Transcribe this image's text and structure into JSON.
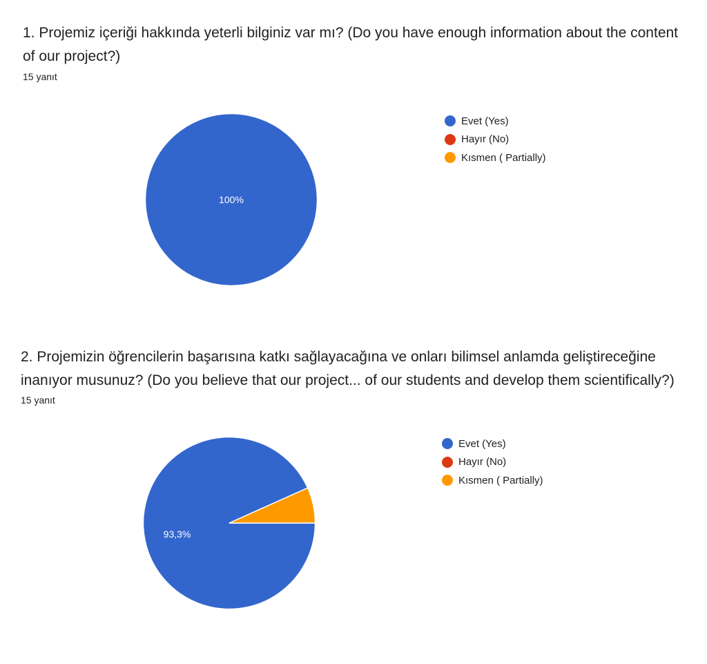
{
  "questions": [
    {
      "title": "1. Projemiz içeriği hakkında yeterli bilginiz var mı? (Do you have enough information about the content of our project?)",
      "response_count": "15 yanıt"
    },
    {
      "title": "2. Projemizin öğrencilerin başarısına katkı sağlayacağına ve onları bilimsel anlamda geliştireceğine inanıyor musunuz? (Do you believe that our project... of our students and develop them scientifically?)",
      "response_count": "15 yanıt"
    }
  ],
  "chart_data": [
    {
      "type": "pie",
      "title": "1. Projemiz içeriği hakkında yeterli bilginiz var mı? (Do you have enough information about the content of our project?)",
      "legend_placement": "right",
      "slices": [
        {
          "label": "Evet (Yes)",
          "value": 100,
          "color": "#3366cc",
          "data_label": "100%"
        },
        {
          "label": "Hayır (No)",
          "value": 0,
          "color": "#dc3912",
          "data_label": ""
        },
        {
          "label": "Kısmen ( Partially)",
          "value": 0,
          "color": "#ff9900",
          "data_label": ""
        }
      ]
    },
    {
      "type": "pie",
      "title": "2. Projemizin öğrencilerin başarısına katkı sağlayacağına ve onları bilimsel anlamda geliştireceğine inanıyor musunuz? (Do you believe that our project... of our students and develop them scientifically?)",
      "legend_placement": "right",
      "slices": [
        {
          "label": "Evet (Yes)",
          "value": 93.3,
          "color": "#3366cc",
          "data_label": "93,3%"
        },
        {
          "label": "Hayır (No)",
          "value": 0,
          "color": "#dc3912",
          "data_label": ""
        },
        {
          "label": "Kısmen ( Partially)",
          "value": 6.7,
          "color": "#ff9900",
          "data_label": ""
        }
      ]
    }
  ]
}
